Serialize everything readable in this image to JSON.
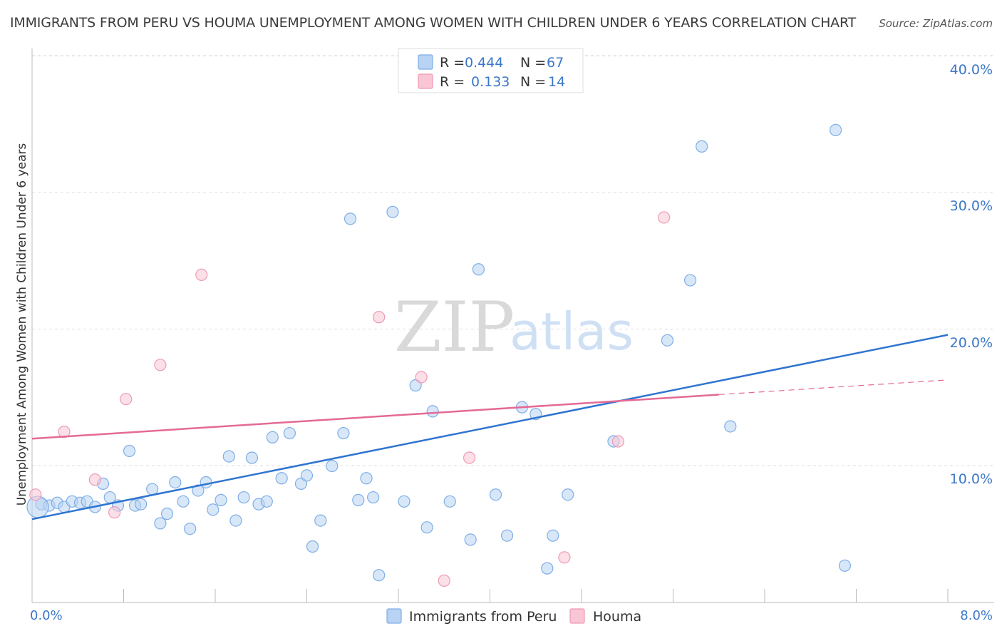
{
  "title": "IMMIGRANTS FROM PERU VS HOUMA UNEMPLOYMENT AMONG WOMEN WITH CHILDREN UNDER 6 YEARS CORRELATION CHART",
  "source": "Source: ZipAtlas.com",
  "watermark": {
    "zip": "ZIP",
    "atlas": "atlas"
  },
  "colors": {
    "blue_fill": "#b8d3f3",
    "blue_stroke": "#7eaee6",
    "blue_line": "#2f74d0",
    "pink_fill": "#f9c6d6",
    "pink_stroke": "#ee9ab5",
    "pink_line": "#e46a95",
    "axis_text": "#3b77c9",
    "grid": "#dddddd"
  },
  "legend": {
    "rows": [
      {
        "r_label": "R =",
        "r_value": "0.444",
        "n_label": "N =",
        "n_value": "67"
      },
      {
        "r_label": "R =",
        "r_value": "0.133",
        "n_label": "N =",
        "n_value": "14"
      }
    ]
  },
  "bottom_legend": [
    "Immigrants from Peru",
    "Houma"
  ],
  "chart_data": {
    "type": "scatter",
    "title": "IMMIGRANTS FROM PERU VS HOUMA UNEMPLOYMENT AMONG WOMEN WITH CHILDREN UNDER 6 YEARS CORRELATION CHART",
    "xlabel": "",
    "ylabel": "Unemployment Among Women with Children Under 6 years",
    "xlim": [
      0,
      8
    ],
    "ylim": [
      0,
      40
    ],
    "x_tick_labels": [
      "0.0%",
      "8.0%"
    ],
    "y_ticks": [
      10,
      20,
      30,
      40
    ],
    "y_tick_labels": [
      "10.0%",
      "20.0%",
      "30.0%",
      "40.0%"
    ],
    "grid": true,
    "legend_position": "top-center",
    "series": [
      {
        "name": "Immigrants from Peru",
        "r": 0.444,
        "n": 67,
        "trend": {
          "x": [
            0,
            8
          ],
          "y": [
            6.1,
            19.6
          ],
          "dashed_from": null
        },
        "points": [
          [
            0.08,
            7.2
          ],
          [
            0.15,
            7.1
          ],
          [
            0.22,
            7.3
          ],
          [
            0.28,
            7.0
          ],
          [
            0.35,
            7.4
          ],
          [
            0.42,
            7.3
          ],
          [
            0.48,
            7.4
          ],
          [
            0.55,
            7.0
          ],
          [
            0.62,
            8.7
          ],
          [
            0.68,
            7.7
          ],
          [
            0.75,
            7.1
          ],
          [
            0.85,
            11.1
          ],
          [
            0.9,
            7.1
          ],
          [
            0.95,
            7.2
          ],
          [
            1.05,
            8.3
          ],
          [
            1.12,
            5.8
          ],
          [
            1.18,
            6.5
          ],
          [
            1.25,
            8.8
          ],
          [
            1.32,
            7.4
          ],
          [
            1.38,
            5.4
          ],
          [
            1.45,
            8.2
          ],
          [
            1.52,
            8.8
          ],
          [
            1.58,
            6.8
          ],
          [
            1.65,
            7.5
          ],
          [
            1.72,
            10.7
          ],
          [
            1.78,
            6.0
          ],
          [
            1.85,
            7.7
          ],
          [
            1.92,
            10.6
          ],
          [
            1.98,
            7.2
          ],
          [
            2.05,
            7.4
          ],
          [
            2.1,
            12.1
          ],
          [
            2.18,
            9.1
          ],
          [
            2.25,
            12.4
          ],
          [
            2.35,
            8.7
          ],
          [
            2.4,
            9.3
          ],
          [
            2.45,
            4.1
          ],
          [
            2.52,
            6.0
          ],
          [
            2.62,
            10.0
          ],
          [
            2.72,
            12.4
          ],
          [
            2.78,
            28.1
          ],
          [
            2.85,
            7.5
          ],
          [
            2.92,
            9.1
          ],
          [
            2.98,
            7.7
          ],
          [
            3.03,
            2.0
          ],
          [
            3.15,
            28.6
          ],
          [
            3.25,
            7.4
          ],
          [
            3.35,
            15.9
          ],
          [
            3.45,
            5.5
          ],
          [
            3.5,
            14.0
          ],
          [
            3.65,
            7.4
          ],
          [
            3.83,
            4.6
          ],
          [
            3.9,
            24.4
          ],
          [
            4.05,
            7.9
          ],
          [
            4.15,
            4.9
          ],
          [
            4.28,
            14.3
          ],
          [
            4.4,
            13.8
          ],
          [
            4.5,
            2.5
          ],
          [
            4.55,
            4.9
          ],
          [
            4.68,
            7.9
          ],
          [
            5.08,
            11.8
          ],
          [
            5.55,
            19.2
          ],
          [
            5.75,
            23.6
          ],
          [
            5.85,
            33.4
          ],
          [
            6.1,
            12.9
          ],
          [
            7.02,
            34.6
          ],
          [
            7.1,
            2.7
          ],
          [
            0.05,
            7.0
          ]
        ]
      },
      {
        "name": "Houma",
        "r": 0.133,
        "n": 14,
        "trend": {
          "x": [
            0,
            8
          ],
          "y": [
            12.0,
            16.3
          ],
          "dashed_from": 6.0
        },
        "points": [
          [
            0.03,
            7.9
          ],
          [
            0.28,
            12.5
          ],
          [
            0.55,
            9.0
          ],
          [
            0.72,
            6.6
          ],
          [
            0.82,
            14.9
          ],
          [
            1.12,
            17.4
          ],
          [
            1.48,
            24.0
          ],
          [
            3.03,
            20.9
          ],
          [
            3.4,
            16.5
          ],
          [
            3.6,
            1.6
          ],
          [
            3.82,
            10.6
          ],
          [
            4.65,
            3.3
          ],
          [
            5.12,
            11.8
          ],
          [
            5.52,
            28.2
          ]
        ]
      }
    ]
  }
}
